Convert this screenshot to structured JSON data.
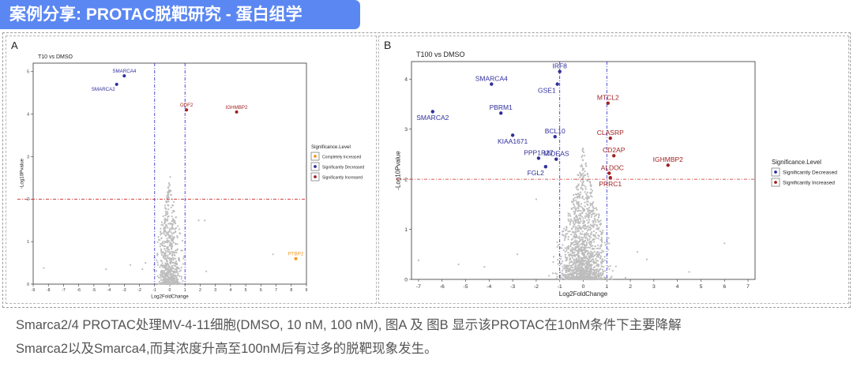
{
  "banner_title": "案例分享: PROTAC脱靶研究 - 蛋白组学",
  "caption": {
    "line1": "Smarca2/4 PROTAC处理MV-4-11细胞(DMSO, 10 nM, 100 nM), 图A 及 图B 显示该PROTAC在10nM条件下主要降解",
    "line2": "Smarca2以及Smarca4,而其浓度升高至100nM后有过多的脱靶现象发生。"
  },
  "colors": {
    "decreased": "#2e2e9a",
    "increased": "#a12222",
    "completely_increased": "#f39a1a",
    "background_points": "#bdbdbd",
    "threshold": "#2020d0",
    "pthreshold": "#d02020"
  },
  "chart_data": [
    {
      "type": "scatter",
      "panel_label": "A",
      "title": "T10 vs DMSO",
      "xlabel": "Log2FoldChange",
      "ylabel": "-Log10Pvalue",
      "xlim": [
        -9,
        9
      ],
      "ylim": [
        0,
        5.2
      ],
      "xticks": [
        -9,
        -8,
        -7,
        -6,
        -5,
        -4,
        -3,
        -2,
        -1,
        0,
        1,
        2,
        3,
        4,
        5,
        6,
        7,
        8,
        9
      ],
      "yticks": [
        0,
        1,
        2,
        3,
        4,
        5
      ],
      "fc_threshold": [
        -1,
        1
      ],
      "p_threshold": 2,
      "legend_title": "Significance.Level",
      "legend": [
        {
          "label": "Completely Increased",
          "key": "completely_increased"
        },
        {
          "label": "Significantly Decreased",
          "key": "decreased"
        },
        {
          "label": "Significantly Increased",
          "key": "increased"
        }
      ],
      "labeled_points": [
        {
          "label": "SMARCA4",
          "x": -3.0,
          "y": 4.9,
          "group": "decreased",
          "label_side": "above"
        },
        {
          "label": "SMARCA2",
          "x": -3.5,
          "y": 4.7,
          "group": "decreased",
          "label_side": "below-left"
        },
        {
          "label": "ODF2",
          "x": 1.1,
          "y": 4.1,
          "group": "increased",
          "label_side": "above"
        },
        {
          "label": "IGHMBP2",
          "x": 4.4,
          "y": 4.05,
          "group": "increased",
          "label_side": "above"
        },
        {
          "label": "PTBP2",
          "x": 8.3,
          "y": 0.6,
          "group": "completely_increased",
          "label_side": "above"
        }
      ],
      "outliers": [
        [
          -8.3,
          0.38
        ],
        [
          -4.2,
          0.35
        ],
        [
          -2.6,
          0.45
        ],
        [
          6.8,
          0.7
        ],
        [
          2.4,
          0.3
        ],
        [
          -1.6,
          0.5
        ],
        [
          1.9,
          1.5
        ],
        [
          2.3,
          1.5
        ],
        [
          -1.8,
          0.35
        ]
      ],
      "cloud": {
        "count": 700,
        "x_sd": 0.35,
        "y_max": 2.6,
        "seed": 11
      }
    },
    {
      "type": "scatter",
      "panel_label": "B",
      "title": "T100 vs DMSO",
      "xlabel": "Log2FoldChange",
      "ylabel": "-Log10Pvalue",
      "xlim": [
        -7.3,
        7.3
      ],
      "ylim": [
        0,
        4.35
      ],
      "xticks": [
        -7,
        -6,
        -5,
        -4,
        -3,
        -2,
        -1,
        0,
        1,
        2,
        3,
        4,
        5,
        6,
        7
      ],
      "yticks": [
        0,
        1,
        2,
        3,
        4
      ],
      "fc_threshold": [
        -1,
        1
      ],
      "p_threshold": 2,
      "legend_title": "Significance.Level",
      "legend": [
        {
          "label": "Significantly Decreased",
          "key": "decreased"
        },
        {
          "label": "Significantly Increased",
          "key": "increased"
        }
      ],
      "labeled_points": [
        {
          "label": "IRF8",
          "x": -1.0,
          "y": 4.15,
          "group": "decreased",
          "label_side": "above"
        },
        {
          "label": "SMARCA4",
          "x": -3.9,
          "y": 3.9,
          "group": "decreased",
          "label_side": "above"
        },
        {
          "label": "GSE1",
          "x": -1.1,
          "y": 3.9,
          "group": "decreased",
          "label_side": "below-left"
        },
        {
          "label": "SMARCA2",
          "x": -6.4,
          "y": 3.35,
          "group": "decreased",
          "label_side": "below"
        },
        {
          "label": "PBRM1",
          "x": -3.5,
          "y": 3.32,
          "group": "decreased",
          "label_side": "above"
        },
        {
          "label": "MTCL2",
          "x": 1.05,
          "y": 3.52,
          "group": "increased",
          "label_side": "above"
        },
        {
          "label": "BCL10",
          "x": -1.2,
          "y": 2.85,
          "group": "decreased",
          "label_side": "above"
        },
        {
          "label": "KIAA1671",
          "x": -3.0,
          "y": 2.88,
          "group": "decreased",
          "label_side": "below"
        },
        {
          "label": "CLASRP",
          "x": 1.15,
          "y": 2.82,
          "group": "increased",
          "label_side": "above"
        },
        {
          "label": "CD2AP",
          "x": 1.3,
          "y": 2.47,
          "group": "increased",
          "label_side": "above"
        },
        {
          "label": "PPP1R27",
          "x": -1.9,
          "y": 2.42,
          "group": "decreased",
          "label_side": "above"
        },
        {
          "label": "MIDEAS",
          "x": -1.15,
          "y": 2.4,
          "group": "decreased",
          "label_side": "above"
        },
        {
          "label": "FGL2",
          "x": -1.6,
          "y": 2.25,
          "group": "decreased",
          "label_side": "below-left"
        },
        {
          "label": "IGHMBP2",
          "x": 3.6,
          "y": 2.28,
          "group": "increased",
          "label_side": "above"
        },
        {
          "label": "ALDOC",
          "x": 1.1,
          "y": 2.12,
          "group": "increased",
          "label_side": "above-left"
        },
        {
          "label": "PRRC1",
          "x": 1.15,
          "y": 2.03,
          "group": "increased",
          "label_side": "below"
        }
      ],
      "outliers": [
        [
          -7.0,
          0.38
        ],
        [
          -5.3,
          0.3
        ],
        [
          6.0,
          0.72
        ],
        [
          2.7,
          0.4
        ],
        [
          -2.8,
          0.5
        ],
        [
          -4.2,
          0.25
        ],
        [
          4.5,
          0.15
        ],
        [
          2.3,
          0.55
        ],
        [
          -2.0,
          1.6
        ]
      ],
      "cloud": {
        "count": 1500,
        "x_sd": 0.45,
        "y_max": 2.7,
        "seed": 7
      }
    }
  ]
}
